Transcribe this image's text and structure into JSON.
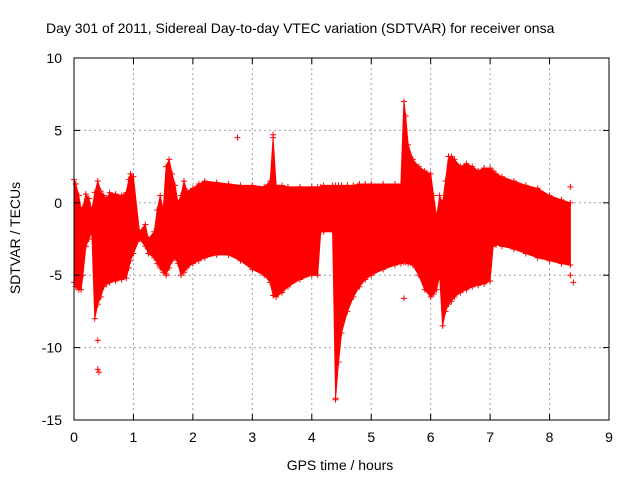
{
  "chart_data": {
    "type": "scatter",
    "title": "Day 301 of 2011, Sidereal Day-to-day VTEC variation (SDTVAR) for receiver onsa",
    "xlabel": "GPS time / hours",
    "ylabel": "SDTVAR / TECUs",
    "xlim": [
      0,
      9
    ],
    "ylim": [
      -15,
      10
    ],
    "xticks": [
      "0",
      "1",
      "2",
      "3",
      "4",
      "5",
      "6",
      "7",
      "8",
      "9"
    ],
    "yticks": [
      "-15",
      "-10",
      "-5",
      "0",
      "5",
      "10"
    ],
    "grid": true,
    "marker": "+",
    "color": "#ff0000",
    "grid_color": "#a0a0a0",
    "series": [
      {
        "name": "SDTVAR",
        "envelope": {
          "x": [
            0.0,
            0.03,
            0.08,
            0.12,
            0.15,
            0.2,
            0.25,
            0.3,
            0.35,
            0.4,
            0.45,
            0.5,
            0.55,
            0.6,
            0.7,
            0.8,
            0.88,
            0.92,
            0.95,
            1.0,
            1.1,
            1.2,
            1.25,
            1.35,
            1.4,
            1.45,
            1.5,
            1.55,
            1.6,
            1.65,
            1.7,
            1.75,
            1.8,
            1.85,
            1.9,
            2.0,
            2.1,
            2.2,
            2.4,
            2.6,
            2.8,
            3.0,
            3.2,
            3.3,
            3.35,
            3.4,
            3.5,
            3.6,
            3.8,
            4.0,
            4.1,
            4.15,
            4.2,
            4.35,
            4.4,
            4.45,
            4.5,
            4.6,
            4.7,
            4.8,
            4.9,
            5.0,
            5.2,
            5.4,
            5.5,
            5.55,
            5.58,
            5.62,
            5.7,
            5.8,
            5.9,
            6.0,
            6.05,
            6.1,
            6.15,
            6.2,
            6.25,
            6.3,
            6.35,
            6.4,
            6.5,
            6.6,
            6.7,
            6.8,
            6.9,
            7.0,
            7.05,
            7.1,
            7.2,
            7.4,
            7.6,
            7.8,
            8.0,
            8.2,
            8.35
          ],
          "upper": [
            1.6,
            1.3,
            0.5,
            -0.5,
            -0.3,
            0.6,
            0.3,
            -0.5,
            0.7,
            1.5,
            0.8,
            0.5,
            0.3,
            0.7,
            0.6,
            0.5,
            0.7,
            1.6,
            2.0,
            1.8,
            -2.0,
            -1.5,
            -2.5,
            -2.0,
            -0.5,
            0.5,
            -0.5,
            2.5,
            3.0,
            2.0,
            1.2,
            0.0,
            0.5,
            1.5,
            0.8,
            1.0,
            1.3,
            1.5,
            1.4,
            1.3,
            1.2,
            1.2,
            1.1,
            1.5,
            4.5,
            1.2,
            1.2,
            1.1,
            1.1,
            1.1,
            1.1,
            1.1,
            1.2,
            1.2,
            1.2,
            1.2,
            1.2,
            1.2,
            1.2,
            1.3,
            1.3,
            1.3,
            1.3,
            1.3,
            1.3,
            7.0,
            6.0,
            4.0,
            3.0,
            2.5,
            2.2,
            2.0,
            0.5,
            -1.0,
            0.5,
            0.0,
            1.5,
            3.2,
            3.2,
            3.0,
            2.5,
            2.7,
            2.5,
            2.2,
            2.4,
            2.4,
            2.2,
            2.0,
            1.8,
            1.5,
            1.2,
            1.0,
            0.5,
            0.2,
            0.0
          ],
          "lower": [
            -5.5,
            -5.8,
            -6.0,
            -6.0,
            -5.0,
            -3.0,
            -2.5,
            -2.0,
            -8.0,
            -7.0,
            -6.5,
            -5.8,
            -5.6,
            -5.5,
            -5.4,
            -5.3,
            -5.2,
            -4.5,
            -4.0,
            -3.5,
            -2.5,
            -3.0,
            -3.5,
            -3.8,
            -4.2,
            -4.5,
            -4.8,
            -4.9,
            -4.5,
            -4.0,
            -3.8,
            -4.2,
            -5.0,
            -4.8,
            -4.5,
            -4.2,
            -4.0,
            -3.8,
            -3.6,
            -3.6,
            -4.0,
            -4.6,
            -5.0,
            -5.5,
            -6.4,
            -6.5,
            -6.2,
            -5.8,
            -5.3,
            -5.0,
            -5.0,
            -2.0,
            -2.0,
            -2.0,
            -13.5,
            -11.0,
            -9.0,
            -7.5,
            -6.5,
            -5.8,
            -5.3,
            -5.0,
            -4.6,
            -4.3,
            -4.2,
            -4.1,
            -4.1,
            -4.2,
            -4.3,
            -5.0,
            -6.0,
            -6.5,
            -6.3,
            -6.0,
            -5.0,
            -8.5,
            -7.5,
            -7.0,
            -6.8,
            -6.5,
            -6.2,
            -6.0,
            -5.8,
            -5.7,
            -5.6,
            -5.4,
            -3.0,
            -2.9,
            -3.0,
            -3.2,
            -3.5,
            -3.8,
            -4.0,
            -4.2,
            -4.3
          ]
        },
        "outliers": {
          "x": [
            0.4,
            0.42,
            0.4,
            1.55,
            2.75,
            3.35,
            4.4,
            5.55,
            8.35,
            8.4,
            8.35
          ],
          "y": [
            -11.5,
            -11.7,
            -9.5,
            -5.0,
            4.5,
            4.7,
            -13.6,
            -6.6,
            1.1,
            -5.5,
            -5.0
          ]
        }
      }
    ]
  }
}
